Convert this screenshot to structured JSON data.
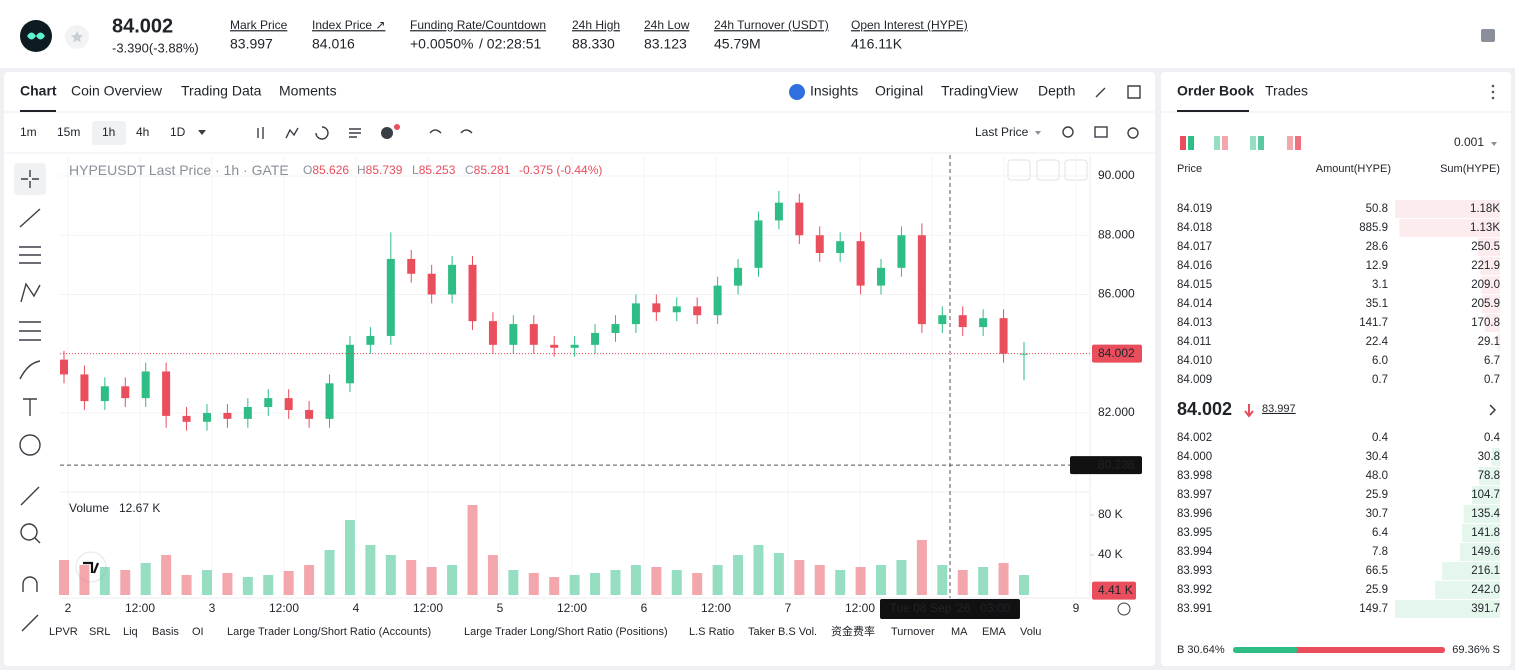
{
  "header": {
    "price": "84.002",
    "change": "-3.390(-3.88%)",
    "stats": [
      {
        "label": "Mark Price",
        "value": "83.997"
      },
      {
        "label": "Index Price ↗",
        "value": "84.016"
      },
      {
        "label": "Funding Rate/Countdown",
        "value": "+0.0050%",
        "extra": "/ 02:28:51"
      },
      {
        "label": "24h High",
        "value": "88.330"
      },
      {
        "label": "24h Low",
        "value": "83.123"
      },
      {
        "label": "24h Turnover (USDT)",
        "value": "45.79M"
      },
      {
        "label": "Open Interest (HYPE)",
        "value": "416.11K"
      }
    ]
  },
  "tabs": [
    "Chart",
    "Coin Overview",
    "Trading Data",
    "Moments"
  ],
  "views": [
    "Insights",
    "Original",
    "TradingView",
    "Depth"
  ],
  "intervals": [
    "1m",
    "15m",
    "1h",
    "4h",
    "1D"
  ],
  "price_source": "Last Price",
  "chart": {
    "type": "candlestick",
    "legend": "HYPEUSDT Last Price · 1h · GATE",
    "ohlc": [
      {
        "k": "O",
        "v": "85.626"
      },
      {
        "k": "H",
        "v": "85.739"
      },
      {
        "k": "L",
        "v": "85.253"
      },
      {
        "k": "C",
        "v": "85.281"
      }
    ],
    "legend_change": "-0.375 (-0.44%)",
    "up_color": "#2ebd85",
    "down_color": "#ea4d5c",
    "open": [
      83.8,
      83.3,
      82.4,
      82.9,
      82.5,
      83.4,
      81.9,
      81.7,
      82.0,
      81.8,
      82.2,
      82.5,
      82.1,
      81.8,
      83.0,
      84.3,
      84.6,
      87.2,
      86.7,
      86.0,
      87.0,
      85.1,
      84.3,
      85.0,
      84.3,
      84.2,
      84.3,
      84.7,
      85.0,
      85.7,
      85.4,
      85.6,
      85.3,
      86.3,
      86.9,
      88.5,
      89.1,
      88.0,
      87.4,
      87.8,
      86.3,
      86.9,
      88.0,
      85.0,
      85.3,
      84.9,
      85.2,
      84.0
    ],
    "high": [
      84.1,
      83.6,
      83.2,
      83.2,
      83.7,
      83.7,
      82.2,
      82.3,
      82.3,
      82.5,
      82.8,
      82.8,
      82.4,
      83.3,
      84.6,
      84.9,
      88.1,
      87.5,
      87.0,
      87.3,
      87.3,
      85.4,
      85.3,
      85.3,
      84.6,
      84.6,
      85.0,
      85.3,
      86.0,
      86.0,
      85.9,
      85.9,
      86.6,
      87.2,
      88.8,
      89.5,
      89.4,
      88.3,
      88.1,
      88.1,
      87.2,
      88.3,
      88.4,
      85.6,
      85.6,
      85.5,
      85.5,
      84.4
    ],
    "low": [
      83.0,
      82.1,
      82.1,
      82.2,
      82.2,
      81.5,
      81.4,
      81.4,
      81.5,
      81.5,
      81.9,
      81.8,
      81.5,
      81.5,
      82.7,
      84.0,
      84.3,
      86.4,
      85.7,
      85.7,
      84.8,
      84.0,
      84.0,
      84.0,
      83.9,
      83.9,
      84.0,
      84.4,
      84.7,
      85.1,
      85.1,
      85.0,
      85.0,
      86.0,
      86.6,
      88.2,
      87.7,
      87.1,
      87.1,
      86.0,
      86.0,
      86.6,
      84.7,
      84.7,
      84.6,
      84.6,
      83.7,
      83.1
    ],
    "close": [
      83.3,
      82.4,
      82.9,
      82.5,
      83.4,
      81.9,
      81.7,
      82.0,
      81.8,
      82.2,
      82.5,
      82.1,
      81.8,
      83.0,
      84.3,
      84.6,
      87.2,
      86.7,
      86.0,
      87.0,
      85.1,
      84.3,
      85.0,
      84.3,
      84.2,
      84.3,
      84.7,
      85.0,
      85.7,
      85.4,
      85.6,
      85.3,
      86.3,
      86.9,
      88.5,
      89.1,
      88.0,
      87.4,
      87.8,
      86.3,
      86.9,
      88.0,
      85.0,
      85.3,
      84.9,
      85.2,
      84.0,
      84.0
    ],
    "ylim": [
      79.33,
      90.71
    ],
    "yticks": [
      {
        "value": 82,
        "label": "82.000"
      },
      {
        "value": 84,
        "label": "84.000"
      },
      {
        "value": 86,
        "label": "86.000"
      },
      {
        "value": 88,
        "label": "88.000"
      },
      {
        "value": 90,
        "label": "90.000"
      }
    ],
    "last_price": {
      "value": 84.002,
      "label": "84.002"
    },
    "crosshair_price": {
      "value": 80.238,
      "label": "80.238"
    },
    "crosshair_time": "Tue 08 Sep '26   03:00",
    "xlabels": [
      "2",
      "12:00",
      "3",
      "12:00",
      "4",
      "12:00",
      "5",
      "12:00",
      "6",
      "12:00",
      "7",
      "12:00",
      null,
      null,
      "9"
    ],
    "volume_title": "Volume",
    "volume_last": "12.67 K",
    "volume": [
      35,
      30,
      28,
      25,
      32,
      40,
      20,
      25,
      22,
      18,
      20,
      24,
      30,
      45,
      75,
      50,
      40,
      35,
      28,
      30,
      90,
      40,
      25,
      22,
      18,
      20,
      22,
      25,
      30,
      28,
      25,
      22,
      30,
      40,
      50,
      42,
      35,
      30,
      25,
      28,
      30,
      35,
      55,
      30,
      25,
      28,
      32,
      20
    ],
    "vlim": [
      0,
      100
    ],
    "vticks": [
      {
        "value": 80,
        "label": "80 K"
      },
      {
        "value": 40,
        "label": "40 K"
      }
    ],
    "volume_current": {
      "value": 4.41,
      "label": "4.41 K"
    }
  },
  "indicators": [
    "LPVR",
    "SRL",
    "Liq",
    "Basis",
    "OI",
    "Large Trader Long/Short Ratio (Accounts)",
    "Large Trader Long/Short Ratio (Positions)",
    "L.S Ratio",
    "Taker B.S Vol.",
    "资金费率",
    "Turnover",
    "MA",
    "EMA",
    "Volu"
  ],
  "orderbook": {
    "tabs": [
      "Order Book",
      "Trades"
    ],
    "precision": "0.001",
    "headers": [
      "Price",
      "Amount(HYPE)",
      "Sum(HYPE)"
    ],
    "asks": [
      {
        "price": "84.019",
        "amount": "50.8",
        "sum": {
          "value": 1180,
          "label": "1.18K"
        }
      },
      {
        "price": "84.018",
        "amount": "885.9",
        "sum": {
          "value": 1130,
          "label": "1.13K"
        }
      },
      {
        "price": "84.017",
        "amount": "28.6",
        "sum": 250.5
      },
      {
        "price": "84.016",
        "amount": "12.9",
        "sum": 221.9
      },
      {
        "price": "84.015",
        "amount": "3.1",
        "sum": {
          "value": 209,
          "label": "209.0"
        }
      },
      {
        "price": "84.014",
        "amount": "35.1",
        "sum": 205.9
      },
      {
        "price": "84.013",
        "amount": "141.7",
        "sum": 170.8
      },
      {
        "price": "84.011",
        "amount": "22.4",
        "sum": 29.1
      },
      {
        "price": "84.010",
        "amount": "6.0",
        "sum": 6.7
      },
      {
        "price": "84.009",
        "amount": "0.7",
        "sum": 0.7
      }
    ],
    "mid_price": "84.002",
    "mark_price": "83.997",
    "bids": [
      {
        "price": "84.002",
        "amount": "0.4",
        "sum": 0.4
      },
      {
        "price": "84.000",
        "amount": "30.4",
        "sum": 30.8
      },
      {
        "price": "83.998",
        "amount": "48.0",
        "sum": 78.8
      },
      {
        "price": "83.997",
        "amount": "25.9",
        "sum": 104.7
      },
      {
        "price": "83.996",
        "amount": "30.7",
        "sum": 135.4
      },
      {
        "price": "83.995",
        "amount": "6.4",
        "sum": 141.8
      },
      {
        "price": "83.994",
        "amount": "7.8",
        "sum": 149.6
      },
      {
        "price": "83.993",
        "amount": "66.5",
        "sum": 216.1
      },
      {
        "price": "83.992",
        "amount": "25.9",
        "sum": {
          "value": 242,
          "label": "242.0"
        }
      },
      {
        "price": "83.991",
        "amount": "149.7",
        "sum": 391.7
      }
    ],
    "buy_ratio": {
      "value": 30.64,
      "label": "B 30.64%"
    },
    "sell_ratio": {
      "value": 69.36,
      "label": "69.36% S"
    }
  }
}
